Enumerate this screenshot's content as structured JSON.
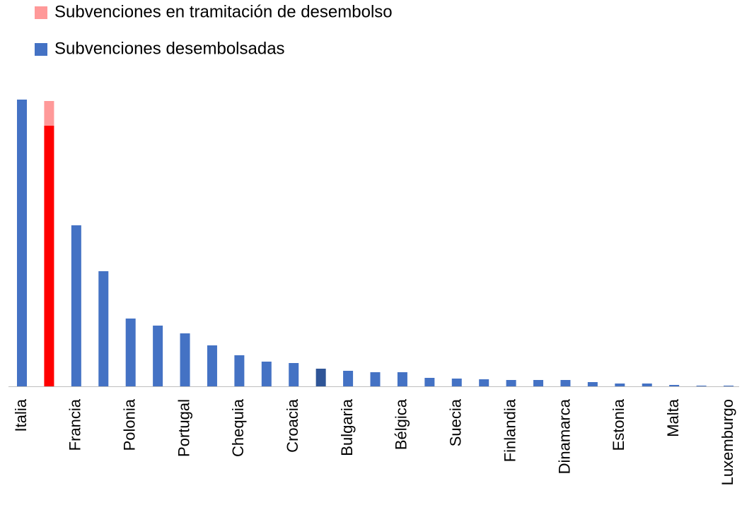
{
  "chart_data": {
    "type": "stacked_bar",
    "categories": [
      "Italia",
      null,
      "Francia",
      null,
      "Polonia",
      null,
      "Portugal",
      null,
      "Chequia",
      null,
      "Croacia",
      null,
      "Bulgaria",
      null,
      "Bélgica",
      null,
      "Suecia",
      null,
      "Finlandia",
      null,
      "Dinamarca",
      null,
      "Estonia",
      null,
      "Malta",
      null,
      "Luxemburgo"
    ],
    "series": [
      {
        "name": "Subvenciones desembolsadas",
        "color": "#4472c4",
        "colors": [
          "#4472c4",
          "#ff0000",
          "#4472c4",
          "#4472c4",
          "#4472c4",
          "#4472c4",
          "#4472c4",
          "#4472c4",
          "#4472c4",
          "#4472c4",
          "#4472c4",
          "#2f5597",
          "#4472c4",
          "#4472c4",
          "#4472c4",
          "#4472c4",
          "#4472c4",
          "#4472c4",
          "#4472c4",
          "#4472c4",
          "#4472c4",
          "#4472c4",
          "#4472c4",
          "#4472c4",
          "#4472c4",
          "#4472c4",
          "#4472c4"
        ],
        "values": [
          406,
          369,
          228,
          163,
          96,
          86,
          75,
          58,
          44,
          35,
          33,
          25,
          22,
          20,
          20,
          12,
          11,
          10,
          9,
          9,
          9,
          6,
          4,
          4,
          2,
          1,
          1
        ]
      },
      {
        "name": "Subvenciones en tramitación de desembolso",
        "color": "#ff9999",
        "values": [
          0,
          35,
          0,
          0,
          0,
          0,
          0,
          0,
          0,
          0,
          0,
          0,
          0,
          0,
          0,
          0,
          0,
          0,
          0,
          0,
          0,
          0,
          0,
          0,
          0,
          0,
          0
        ]
      }
    ],
    "ylim": [
      0,
      410
    ]
  }
}
